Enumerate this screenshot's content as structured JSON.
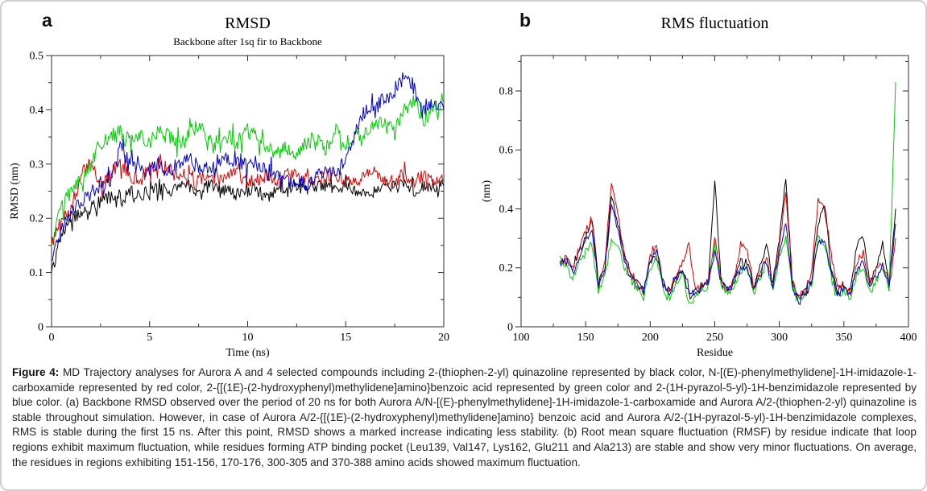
{
  "figure": {
    "panels": [
      {
        "id": "a",
        "label": "a",
        "title": "RMSD",
        "subtitle": "Backbone after 1sq fir to Backbone"
      },
      {
        "id": "b",
        "label": "b",
        "title": "RMS fluctuation",
        "subtitle": ""
      }
    ],
    "caption_tag": "Figure 4:",
    "caption_body": "MD Trajectory analyses for Aurora A and 4 selected compounds including 2-(thiophen-2-yl) quinazoline represented by black color, N-[(E)-phenylmethylidene]-1H-imidazole-1-carboxamide represented by red color, 2-{[(1E)-(2-hydroxyphenyl)methylidene]amino}benzoic acid represented by green color and 2-(1H-pyrazol-5-yl)-1H-benzimidazole represented by blue color. (a) Backbone RMSD observed over the period of 20 ns for both Aurora A/N-[(E)-phenylmethylidene]-1H-imidazole-1-carboxamide and Aurora A/2-(thiophen-2-yl) quinazoline is stable throughout simulation. However, in case of Aurora A/2-{[(1E)-(2-hydroxyphenyl)methylidene]amino} benzoic acid and Aurora A/2-(1H-pyrazol-5-yl)-1H-benzimidazole complexes, RMS is stable during the first 15 ns. After this point, RMSD shows a marked increase indicating less stability.  (b) Root mean square fluctuation (RMSF) by residue indicate that loop regions exhibit maximum fluctuation, while residues forming ATP binding pocket  (Leu139, Val147, Lys162, Glu211 and Ala213) are stable and show very minor fluctuations. On average, the residues in regions exhibiting 151-156, 170-176, 300-305 and 370-388 amino acids showed maximum fluctuation."
  },
  "colors": {
    "black": "#000000",
    "red": "#dd0000",
    "green": "#00cc00",
    "blue": "#0000cc",
    "frame": "#2e2e2e"
  },
  "chart_data": [
    {
      "type": "line",
      "panel": "a",
      "title": "RMSD",
      "subtitle": "Backbone after 1sq fir to Backbone",
      "xlabel": "Time (ns)",
      "ylabel": "RMSD (nm)",
      "xlim": [
        0,
        20
      ],
      "ylim": [
        0,
        0.5
      ],
      "xticks": [
        0,
        5,
        10,
        15,
        20
      ],
      "x_minor_step": 2.5,
      "yticks": [
        0,
        0.1,
        0.2,
        0.3,
        0.4,
        0.5
      ],
      "y_minor_step": 0.05,
      "grid": false,
      "legend": "none",
      "subsamples": 10,
      "series": [
        {
          "name": "2-(thiophen-2-yl) quinazoline",
          "color_key": "black",
          "color": "#000000",
          "x_start": 0,
          "x_step": 0.5,
          "noise": 0.012,
          "values": [
            0.1,
            0.17,
            0.2,
            0.21,
            0.22,
            0.23,
            0.24,
            0.23,
            0.25,
            0.24,
            0.25,
            0.26,
            0.25,
            0.26,
            0.26,
            0.25,
            0.26,
            0.26,
            0.25,
            0.24,
            0.25,
            0.25,
            0.24,
            0.25,
            0.26,
            0.26,
            0.25,
            0.26,
            0.26,
            0.25,
            0.26,
            0.25,
            0.24,
            0.25,
            0.26,
            0.26,
            0.26,
            0.25,
            0.26,
            0.26,
            0.26
          ]
        },
        {
          "name": "N-[(E)-phenylmethylidene]-1H-imidazole-1-carboxamide",
          "color_key": "red",
          "color": "#dd0000",
          "x_start": 0,
          "x_step": 0.5,
          "noise": 0.013,
          "values": [
            0.15,
            0.2,
            0.22,
            0.28,
            0.31,
            0.26,
            0.28,
            0.3,
            0.28,
            0.27,
            0.29,
            0.3,
            0.29,
            0.28,
            0.28,
            0.27,
            0.28,
            0.27,
            0.28,
            0.28,
            0.27,
            0.27,
            0.28,
            0.27,
            0.28,
            0.28,
            0.28,
            0.27,
            0.28,
            0.28,
            0.27,
            0.27,
            0.28,
            0.28,
            0.27,
            0.27,
            0.28,
            0.27,
            0.28,
            0.27,
            0.27
          ]
        },
        {
          "name": "2-{[(1E)-(2-hydroxyphenyl)methylidene]amino}benzoic acid",
          "color_key": "green",
          "color": "#00cc00",
          "x_start": 0,
          "x_step": 0.5,
          "noise": 0.014,
          "values": [
            0.15,
            0.22,
            0.25,
            0.27,
            0.3,
            0.34,
            0.35,
            0.36,
            0.34,
            0.35,
            0.34,
            0.36,
            0.35,
            0.34,
            0.36,
            0.37,
            0.35,
            0.34,
            0.35,
            0.34,
            0.36,
            0.35,
            0.33,
            0.32,
            0.33,
            0.32,
            0.34,
            0.35,
            0.33,
            0.36,
            0.34,
            0.35,
            0.36,
            0.37,
            0.38,
            0.36,
            0.4,
            0.42,
            0.38,
            0.4,
            0.42
          ]
        },
        {
          "name": "2-(1H-pyrazol-5-yl)-1H-benzimidazole",
          "color_key": "blue",
          "color": "#0000cc",
          "x_start": 0,
          "x_step": 0.5,
          "noise": 0.013,
          "values": [
            0.12,
            0.18,
            0.21,
            0.23,
            0.25,
            0.26,
            0.27,
            0.33,
            0.3,
            0.29,
            0.29,
            0.3,
            0.29,
            0.3,
            0.31,
            0.3,
            0.29,
            0.3,
            0.31,
            0.3,
            0.3,
            0.29,
            0.29,
            0.28,
            0.27,
            0.27,
            0.26,
            0.28,
            0.29,
            0.28,
            0.31,
            0.36,
            0.4,
            0.41,
            0.42,
            0.43,
            0.47,
            0.43,
            0.4,
            0.41,
            0.4
          ]
        }
      ]
    },
    {
      "type": "line",
      "panel": "b",
      "title": "RMS fluctuation",
      "subtitle": "",
      "xlabel": "Residue",
      "ylabel": "(nm)",
      "xlim": [
        100,
        400
      ],
      "ylim": [
        0,
        0.92
      ],
      "xticks": [
        100,
        150,
        200,
        250,
        300,
        350,
        400
      ],
      "x_minor_step": 25,
      "yticks": [
        0,
        0.2,
        0.4,
        0.6,
        0.8
      ],
      "y_minor_step": 0.1,
      "grid": false,
      "legend": "none",
      "subsamples": 5,
      "series": [
        {
          "name": "2-(thiophen-2-yl) quinazoline",
          "color_key": "black",
          "color": "#000000",
          "x_start": 130,
          "x_step": 5,
          "noise": 0.012,
          "values": [
            0.22,
            0.23,
            0.2,
            0.25,
            0.3,
            0.38,
            0.15,
            0.2,
            0.45,
            0.35,
            0.25,
            0.18,
            0.15,
            0.13,
            0.22,
            0.25,
            0.15,
            0.12,
            0.16,
            0.2,
            0.1,
            0.12,
            0.13,
            0.15,
            0.5,
            0.15,
            0.13,
            0.15,
            0.22,
            0.22,
            0.14,
            0.2,
            0.28,
            0.14,
            0.3,
            0.5,
            0.15,
            0.1,
            0.12,
            0.15,
            0.35,
            0.42,
            0.2,
            0.12,
            0.14,
            0.12,
            0.28,
            0.3,
            0.15,
            0.2,
            0.28,
            0.15,
            0.4
          ]
        },
        {
          "name": "N-[(E)-phenylmethylidene]-1H-imidazole-1-carboxamide",
          "color_key": "red",
          "color": "#dd0000",
          "x_start": 130,
          "x_step": 5,
          "noise": 0.012,
          "values": [
            0.22,
            0.24,
            0.19,
            0.27,
            0.33,
            0.36,
            0.14,
            0.22,
            0.5,
            0.38,
            0.24,
            0.17,
            0.14,
            0.12,
            0.24,
            0.28,
            0.14,
            0.12,
            0.17,
            0.22,
            0.28,
            0.12,
            0.14,
            0.16,
            0.3,
            0.16,
            0.12,
            0.16,
            0.28,
            0.26,
            0.14,
            0.18,
            0.24,
            0.13,
            0.28,
            0.45,
            0.16,
            0.1,
            0.13,
            0.18,
            0.43,
            0.4,
            0.25,
            0.13,
            0.15,
            0.11,
            0.22,
            0.25,
            0.14,
            0.18,
            0.22,
            0.14,
            0.3
          ]
        },
        {
          "name": "2-{[(1E)-(2-hydroxyphenyl)methylidene]amino}benzoic acid",
          "color_key": "green",
          "color": "#00cc00",
          "x_start": 130,
          "x_step": 5,
          "noise": 0.012,
          "values": [
            0.24,
            0.2,
            0.16,
            0.22,
            0.26,
            0.28,
            0.12,
            0.18,
            0.3,
            0.28,
            0.2,
            0.15,
            0.12,
            0.1,
            0.2,
            0.22,
            0.13,
            0.1,
            0.15,
            0.18,
            0.08,
            0.1,
            0.12,
            0.14,
            0.28,
            0.14,
            0.11,
            0.14,
            0.18,
            0.2,
            0.12,
            0.16,
            0.22,
            0.12,
            0.24,
            0.3,
            0.13,
            0.08,
            0.11,
            0.14,
            0.3,
            0.28,
            0.18,
            0.1,
            0.12,
            0.1,
            0.18,
            0.2,
            0.12,
            0.16,
            0.2,
            0.13,
            0.83
          ]
        },
        {
          "name": "2-(1H-pyrazol-5-yl)-1H-benzimidazole",
          "color_key": "blue",
          "color": "#0000cc",
          "x_start": 130,
          "x_step": 5,
          "noise": 0.012,
          "values": [
            0.22,
            0.23,
            0.18,
            0.24,
            0.29,
            0.33,
            0.14,
            0.2,
            0.42,
            0.33,
            0.23,
            0.16,
            0.14,
            0.12,
            0.22,
            0.26,
            0.14,
            0.11,
            0.16,
            0.2,
            0.12,
            0.11,
            0.13,
            0.15,
            0.25,
            0.15,
            0.12,
            0.15,
            0.2,
            0.2,
            0.13,
            0.17,
            0.22,
            0.13,
            0.26,
            0.35,
            0.14,
            0.09,
            0.12,
            0.16,
            0.28,
            0.3,
            0.19,
            0.11,
            0.13,
            0.11,
            0.2,
            0.22,
            0.13,
            0.17,
            0.21,
            0.14,
            0.35
          ]
        }
      ]
    }
  ]
}
